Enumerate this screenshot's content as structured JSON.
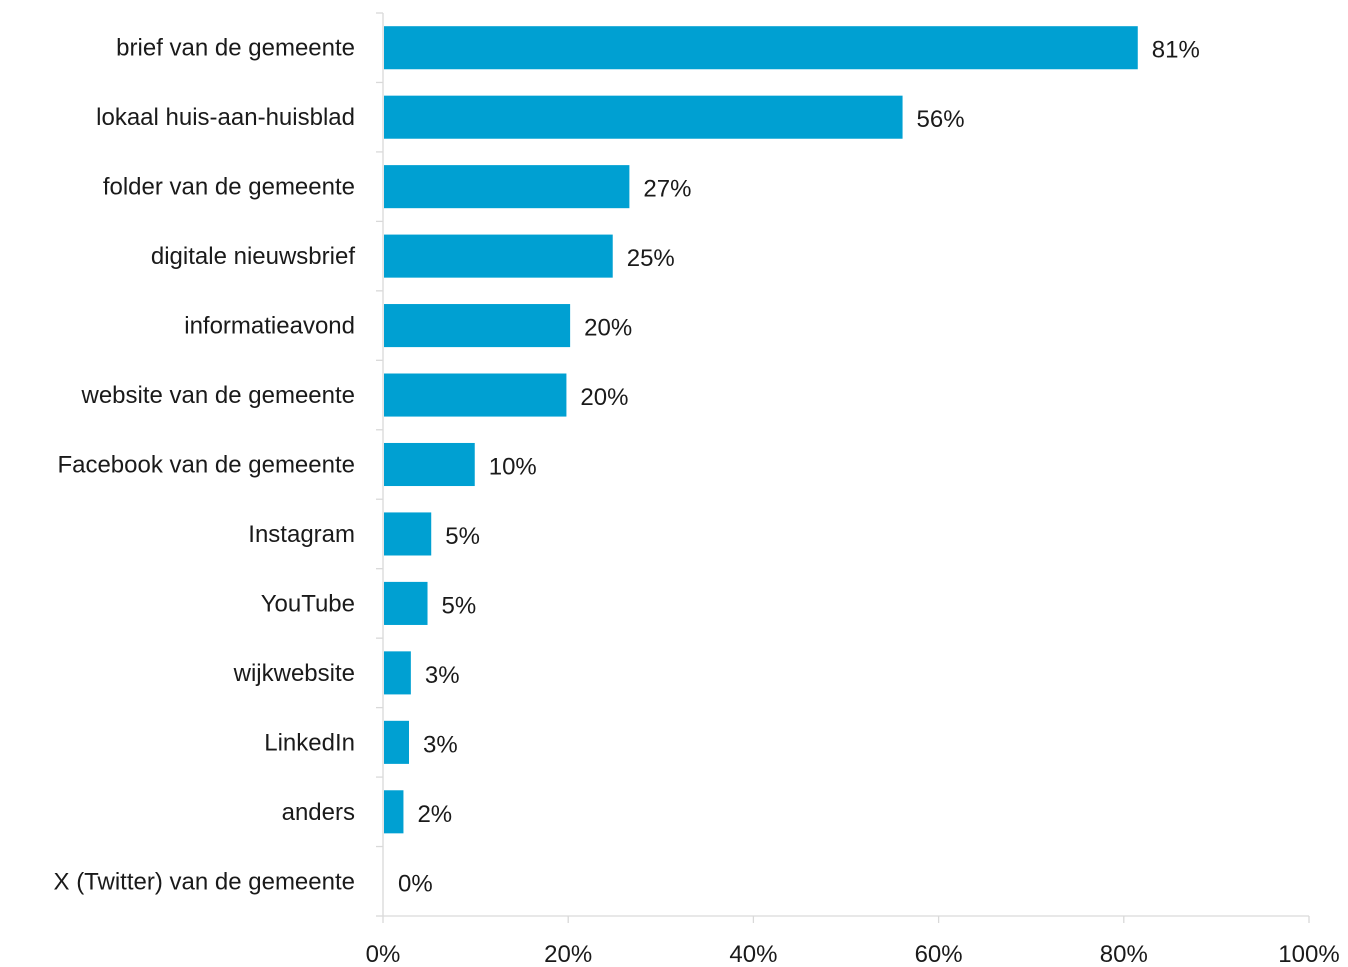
{
  "chart_data": {
    "type": "bar",
    "orientation": "horizontal",
    "categories": [
      "brief van de gemeente",
      "lokaal huis-aan-huisblad",
      "folder van de gemeente",
      "digitale nieuwsbrief",
      "informatieavond",
      "website van de gemeente",
      "Facebook van de gemeente",
      "Instagram",
      "YouTube",
      "wijkwebsite",
      "LinkedIn",
      "anders",
      "X (Twitter) van de gemeente"
    ],
    "values": [
      81.4,
      56.0,
      26.5,
      24.7,
      20.1,
      19.7,
      9.8,
      5.1,
      4.7,
      2.9,
      2.7,
      2.1,
      0
    ],
    "value_labels": [
      "81%",
      "56%",
      "27%",
      "25%",
      "20%",
      "20%",
      "10%",
      "5%",
      "5%",
      "3%",
      "3%",
      "2%",
      "0%"
    ],
    "xlim": [
      0,
      100
    ],
    "x_ticks": [
      0,
      20,
      40,
      60,
      80,
      100
    ],
    "x_tick_labels": [
      "0%",
      "20%",
      "40%",
      "60%",
      "80%",
      "100%"
    ],
    "title": "",
    "xlabel": "",
    "ylabel": "",
    "grid": false,
    "legend": "none",
    "bar_color": "#00a0d2"
  }
}
